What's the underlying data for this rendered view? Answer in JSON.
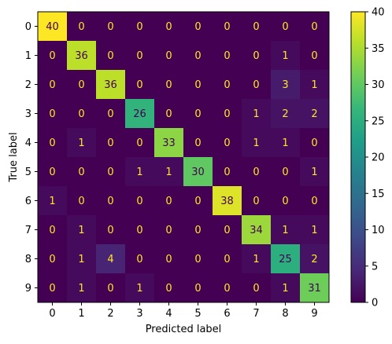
{
  "chart_data": {
    "type": "heatmap",
    "title": "",
    "xlabel": "Predicted label",
    "ylabel": "True label",
    "x_categories": [
      "0",
      "1",
      "2",
      "3",
      "4",
      "5",
      "6",
      "7",
      "8",
      "9"
    ],
    "y_categories": [
      "0",
      "1",
      "2",
      "3",
      "4",
      "5",
      "6",
      "7",
      "8",
      "9"
    ],
    "matrix": [
      [
        40,
        0,
        0,
        0,
        0,
        0,
        0,
        0,
        0,
        0
      ],
      [
        0,
        36,
        0,
        0,
        0,
        0,
        0,
        0,
        1,
        0
      ],
      [
        0,
        0,
        36,
        0,
        0,
        0,
        0,
        0,
        3,
        1
      ],
      [
        0,
        0,
        0,
        26,
        0,
        0,
        0,
        1,
        2,
        2
      ],
      [
        0,
        1,
        0,
        0,
        33,
        0,
        0,
        1,
        1,
        0
      ],
      [
        0,
        0,
        0,
        1,
        1,
        30,
        0,
        0,
        0,
        1
      ],
      [
        1,
        0,
        0,
        0,
        0,
        0,
        38,
        0,
        0,
        0
      ],
      [
        0,
        1,
        0,
        0,
        0,
        0,
        0,
        34,
        1,
        1
      ],
      [
        0,
        1,
        4,
        0,
        0,
        0,
        0,
        1,
        25,
        2
      ],
      [
        0,
        1,
        0,
        1,
        0,
        0,
        0,
        0,
        1,
        31
      ]
    ],
    "colormap": "viridis",
    "vmin": 0,
    "vmax": 40,
    "colorbar_ticks": [
      0,
      5,
      10,
      15,
      20,
      25,
      30,
      35,
      40
    ],
    "text_colors": {
      "low_value": "#fde725",
      "high_value": "#440154"
    }
  }
}
